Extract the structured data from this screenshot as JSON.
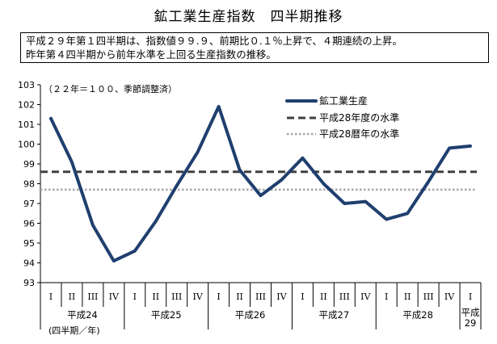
{
  "title": "鉱工業生産指数　四半期推移",
  "summary": {
    "line1": "平成２９年第１四半期は、指数値９９.９、前期比０.１％上昇で、４期連続の上昇。",
    "line2": "昨年第４四半期から前年水準を上回る生産指数の推移。"
  },
  "chart_data": {
    "type": "line",
    "annotation": "（２２年＝１００、季節調整済）",
    "x_unit_note": "(四半期／年)",
    "ylim": [
      93,
      103
    ],
    "yticks": [
      93,
      94,
      95,
      96,
      97,
      98,
      99,
      100,
      101,
      102,
      103
    ],
    "grid": false,
    "legend_position": "top-right",
    "quarter_labels": [
      "I",
      "II",
      "III",
      "IV",
      "I",
      "II",
      "III",
      "IV",
      "I",
      "II",
      "III",
      "IV",
      "I",
      "II",
      "III",
      "IV",
      "I",
      "II",
      "III",
      "IV",
      "I"
    ],
    "year_groups": [
      {
        "label": "平成24",
        "start": 0,
        "count": 4
      },
      {
        "label": "平成25",
        "start": 4,
        "count": 4
      },
      {
        "label": "平成26",
        "start": 8,
        "count": 4
      },
      {
        "label": "平成27",
        "start": 12,
        "count": 4
      },
      {
        "label": "平成28",
        "start": 16,
        "count": 4
      },
      {
        "label": "平成29",
        "start": 20,
        "count": 1,
        "lines": [
          "平成",
          "29"
        ]
      }
    ],
    "series": [
      {
        "name": "鉱工業生産",
        "style": "solid",
        "color": "#1f3f6e",
        "values": [
          101.3,
          99.1,
          95.9,
          94.1,
          94.6,
          96.1,
          97.9,
          99.6,
          101.9,
          98.7,
          97.4,
          98.2,
          99.3,
          98.0,
          97.0,
          97.1,
          96.2,
          96.5,
          98.1,
          99.8,
          99.9
        ]
      },
      {
        "name": "平成28年度の水準",
        "style": "dashed",
        "color": "#404040",
        "level": 98.6
      },
      {
        "name": "平成28暦年の水準",
        "style": "dotted",
        "color": "#a6a6a6",
        "level": 97.7
      }
    ]
  }
}
